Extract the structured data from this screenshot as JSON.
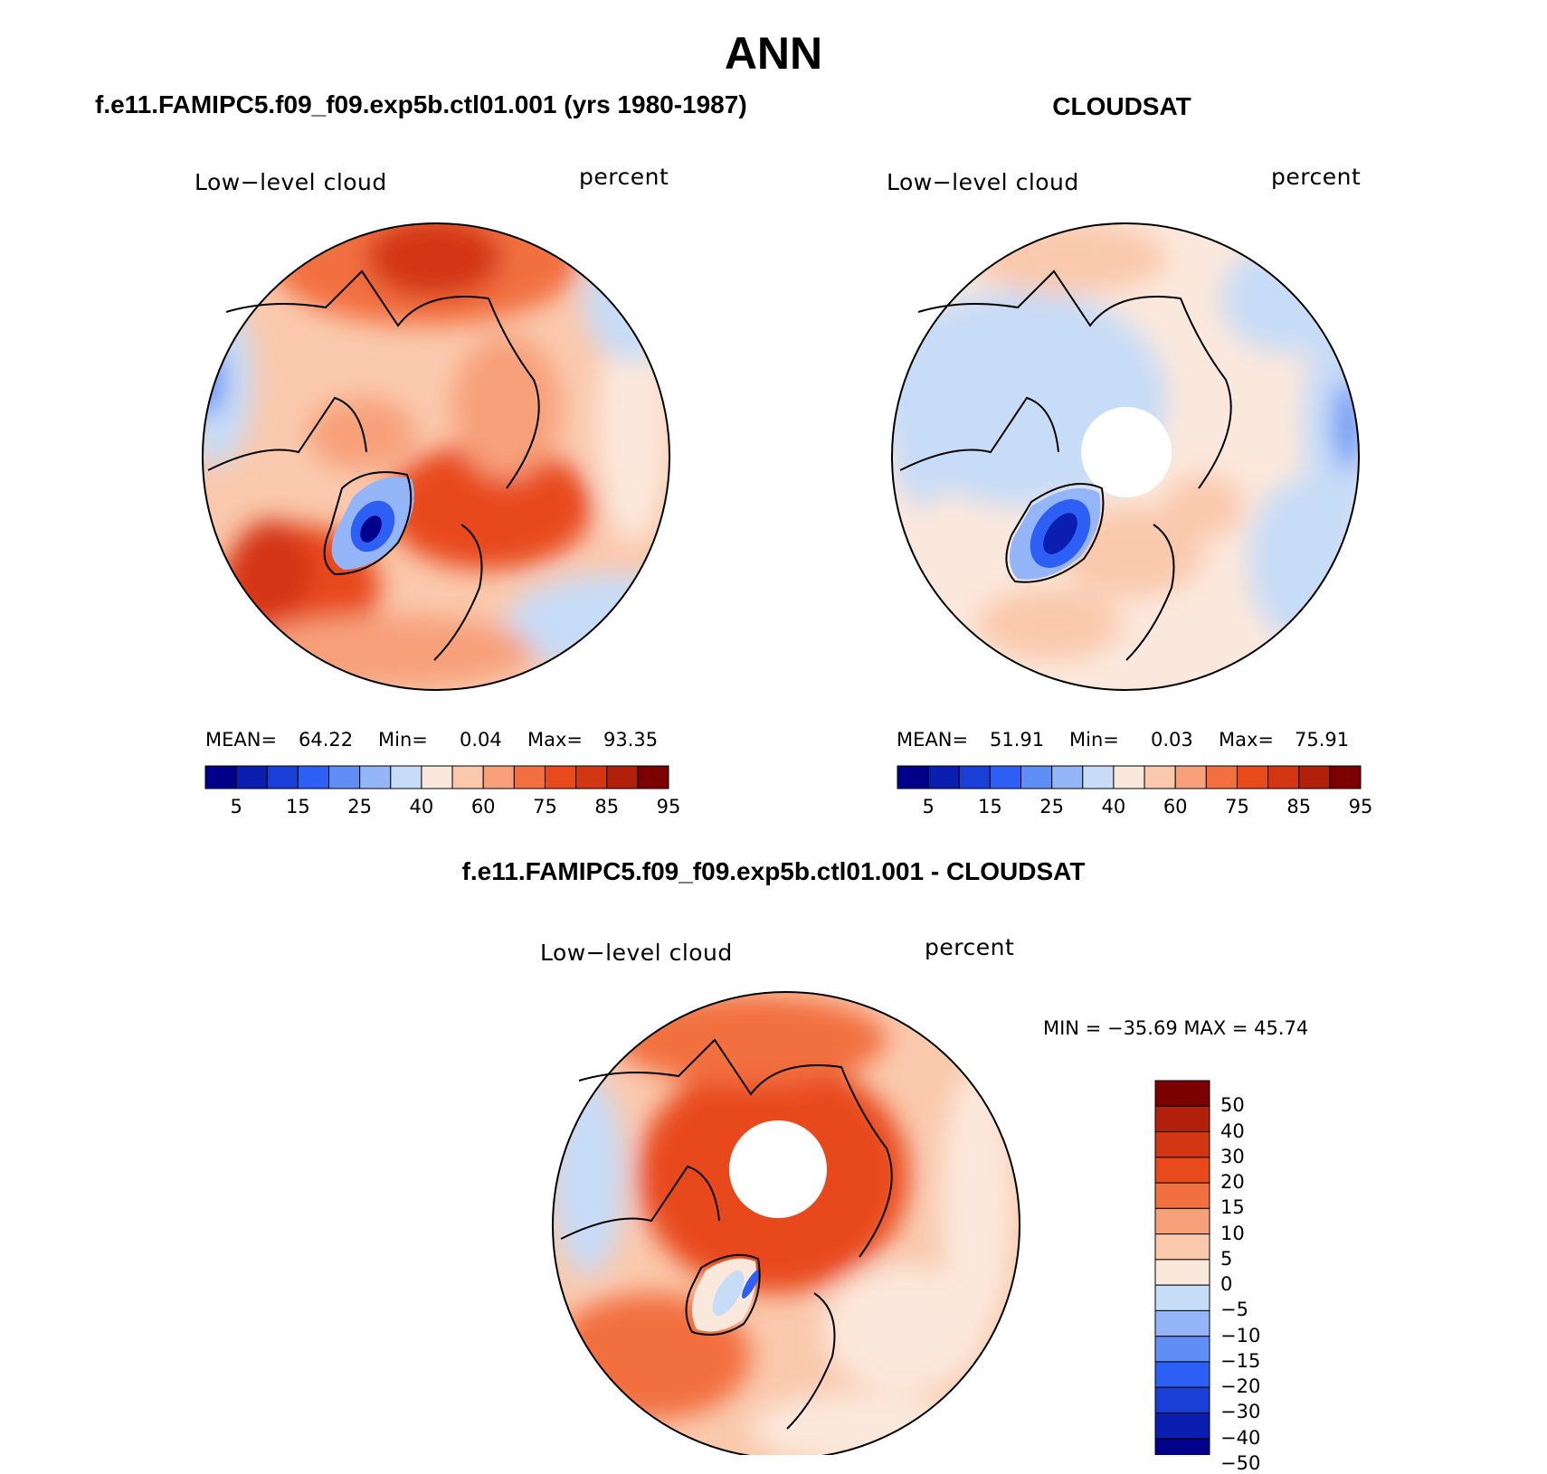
{
  "page_title": "ANN",
  "panel_left": {
    "title": "f.e11.FAMIPC5.f09_f09.exp5b.ctl01.001 (yrs 1980-1987)",
    "variable": "Low−level cloud",
    "units": "percent",
    "stats": {
      "mean_label": "MEAN=",
      "mean": "64.22",
      "min_label": "Min=",
      "min": "0.04",
      "max_label": "Max=",
      "max": "93.35"
    }
  },
  "panel_right": {
    "title": "CLOUDSAT",
    "variable": "Low−level cloud",
    "units": "percent",
    "stats": {
      "mean_label": "MEAN=",
      "mean": "51.91",
      "min_label": "Min=",
      "min": "0.03",
      "max_label": "Max=",
      "max": "75.91"
    }
  },
  "panel_diff": {
    "title": "f.e11.FAMIPC5.f09_f09.exp5b.ctl01.001 - CLOUDSAT",
    "variable": "Low−level cloud",
    "units": "percent",
    "minmax": "MIN = −35.69 MAX =   45.74"
  },
  "colors": {
    "abs_scale": [
      "#00008b",
      "#0a1fb0",
      "#1a3fd6",
      "#2e5ff5",
      "#5f8ef5",
      "#94b5f7",
      "#c7dcf7",
      "#fbe8dc",
      "#fac9ad",
      "#f7a07a",
      "#f2703f",
      "#e84a1c",
      "#d33612",
      "#b0200a",
      "#7d0000"
    ],
    "diff_scale": [
      "#00008b",
      "#0a1fb0",
      "#1a3fd6",
      "#2e5ff5",
      "#5f8ef5",
      "#94b5f7",
      "#c7dcf7",
      "#fbe8dc",
      "#fac9ad",
      "#f7a07a",
      "#f2703f",
      "#e84a1c",
      "#d33612",
      "#b0200a",
      "#7d0000"
    ]
  },
  "chart_data": [
    {
      "type": "heatmap",
      "projection": "north-polar-stereographic",
      "title": "f.e11.FAMIPC5.f09_f09.exp5b.ctl01.001 (yrs 1980-1987)",
      "variable": "Low-level cloud",
      "units": "percent",
      "mean": 64.22,
      "min": 0.04,
      "max": 93.35,
      "colorbar_ticks": [
        "5",
        "15",
        "25",
        "40",
        "60",
        "75",
        "85",
        "95"
      ],
      "levels": [
        5,
        10,
        15,
        20,
        25,
        30,
        40,
        50,
        60,
        70,
        75,
        80,
        85,
        90,
        95
      ]
    },
    {
      "type": "heatmap",
      "projection": "north-polar-stereographic",
      "title": "CLOUDSAT",
      "variable": "Low-level cloud",
      "units": "percent",
      "mean": 51.91,
      "min": 0.03,
      "max": 75.91,
      "colorbar_ticks": [
        "5",
        "15",
        "25",
        "40",
        "60",
        "75",
        "85",
        "95"
      ],
      "levels": [
        5,
        10,
        15,
        20,
        25,
        30,
        40,
        50,
        60,
        70,
        75,
        80,
        85,
        90,
        95
      ]
    },
    {
      "type": "heatmap",
      "projection": "north-polar-stereographic",
      "title": "f.e11.FAMIPC5.f09_f09.exp5b.ctl01.001 - CLOUDSAT",
      "variable": "Low-level cloud",
      "units": "percent",
      "min": -35.69,
      "max": 45.74,
      "colorbar_ticks": [
        "50",
        "40",
        "30",
        "20",
        "15",
        "10",
        "5",
        "0",
        "−5",
        "−10",
        "−15",
        "−20",
        "−30",
        "−40",
        "−50"
      ],
      "levels": [
        -50,
        -40,
        -30,
        -20,
        -15,
        -10,
        -5,
        0,
        5,
        10,
        15,
        20,
        30,
        40,
        50
      ]
    }
  ]
}
